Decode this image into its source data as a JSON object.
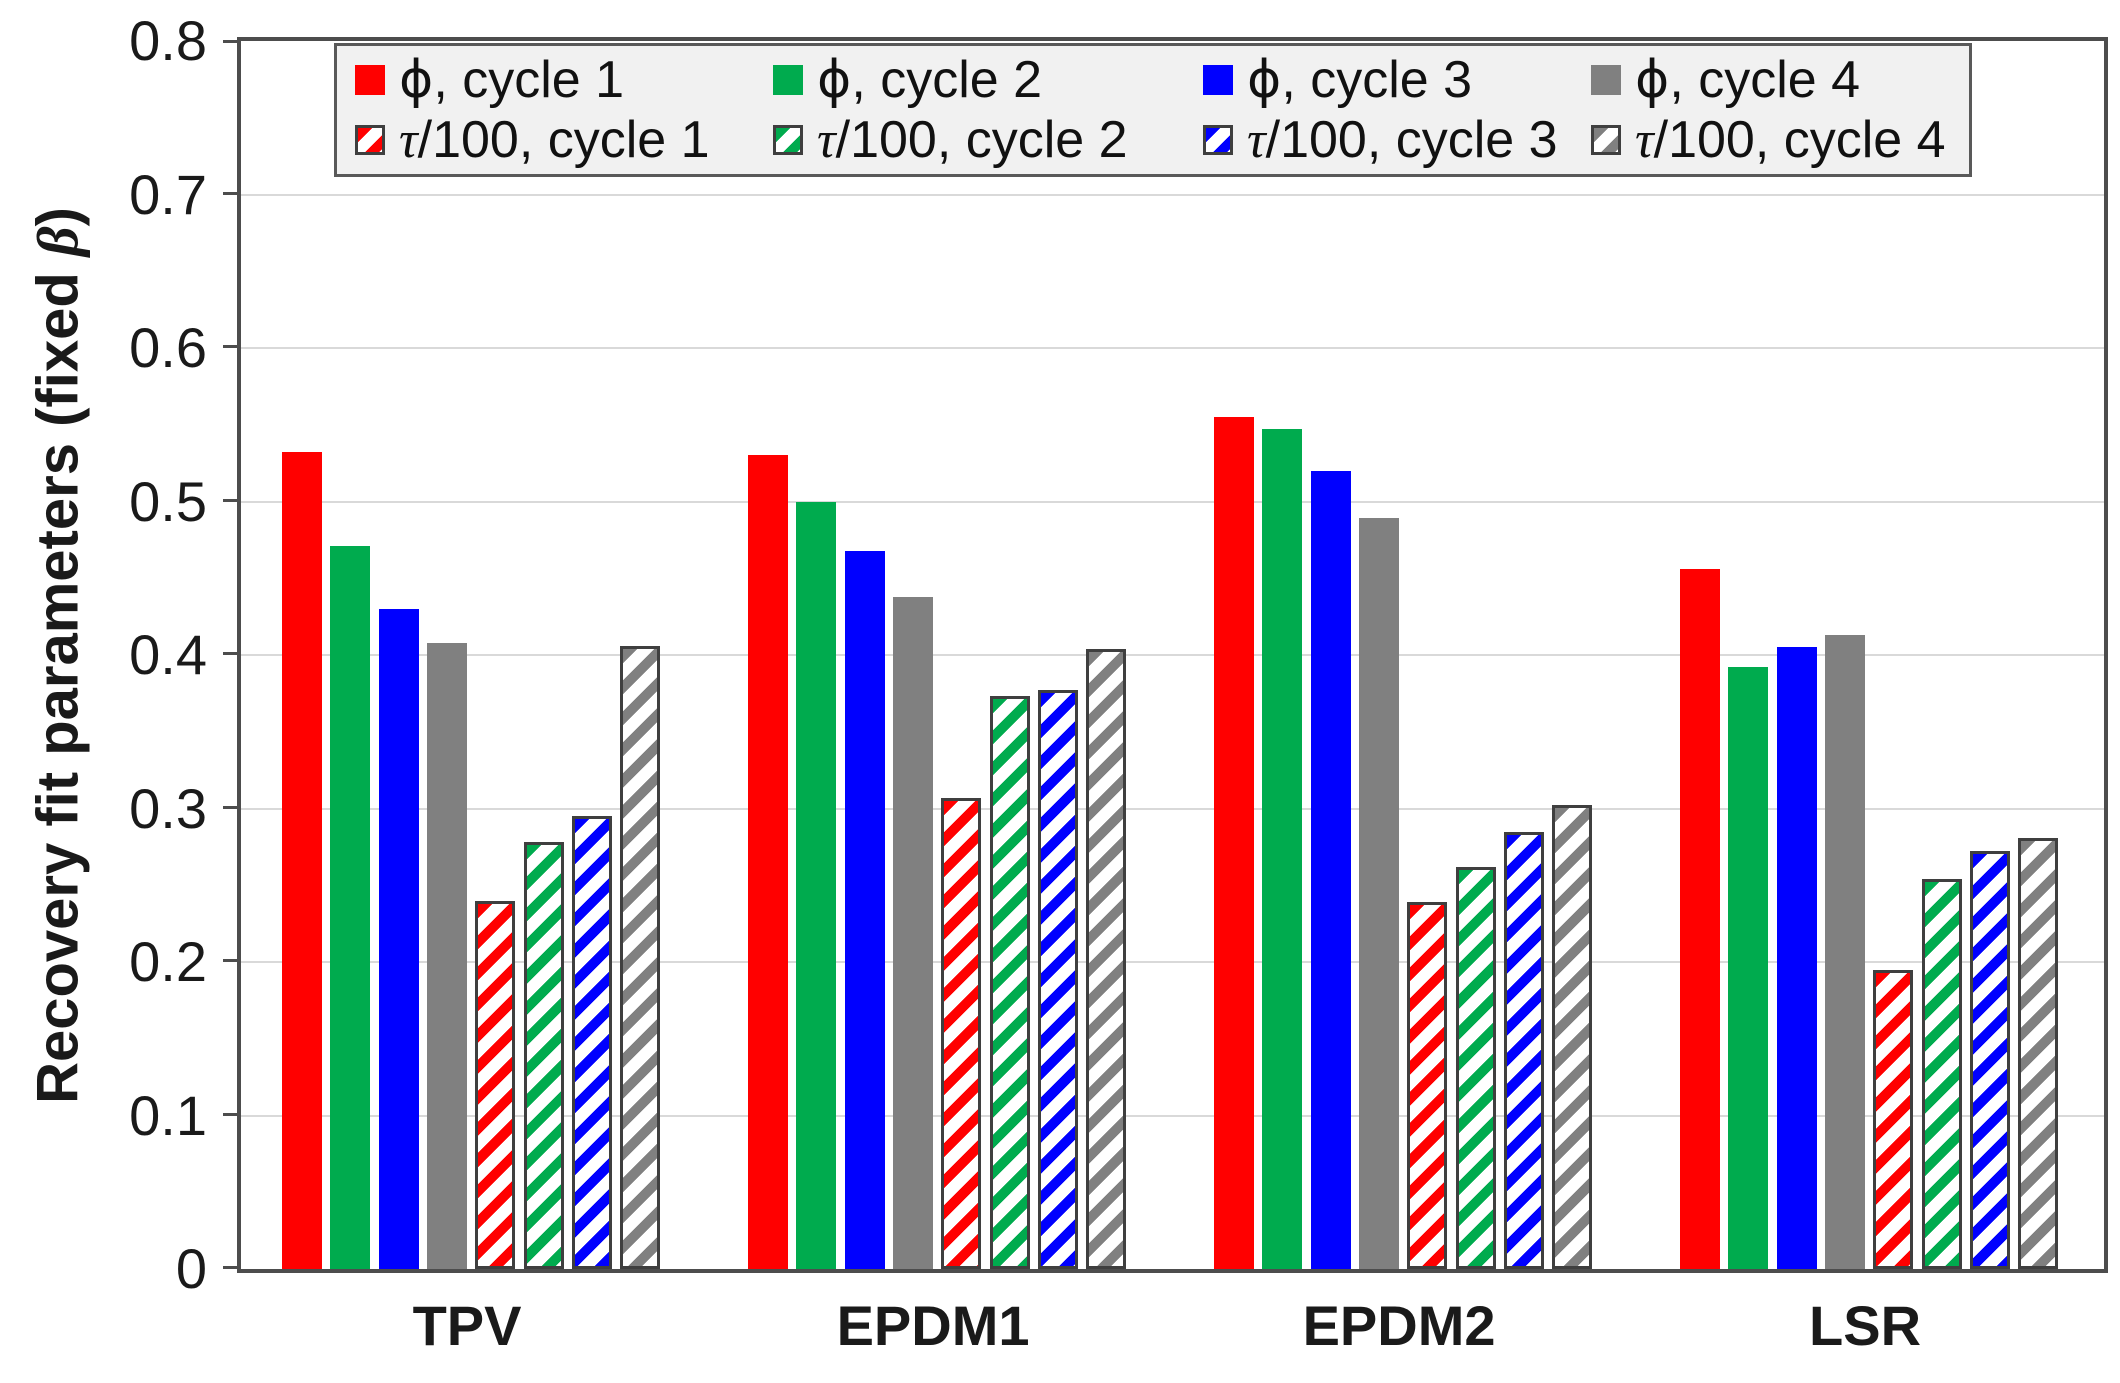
{
  "ylabel": {
    "prefix": "Recovery fit parameters (fixed ",
    "beta": "β",
    "suffix": ")"
  },
  "colors": {
    "cycle1": "#FF0000",
    "cycle2": "#00AB4E",
    "cycle3": "#0000FF",
    "cycle4": "#808080",
    "gridline": "#D9D9D9",
    "axis": "#4D4D4D",
    "bar_outline": "#3F3F3F",
    "legend_bg": "#F1F1F1"
  },
  "chart_data": {
    "type": "bar",
    "title": "",
    "ylabel": "Recovery fit parameters (fixed β)",
    "xlabel": "",
    "categories": [
      "TPV",
      "EPDM1",
      "EPDM2",
      "LSR"
    ],
    "series": [
      {
        "name": "ϕ, cycle 1",
        "symbol": "ϕ",
        "label_rest": ", cycle 1",
        "style": "solid",
        "color_key": "cycle1",
        "values": [
          0.532,
          0.53,
          0.555,
          0.456
        ]
      },
      {
        "name": "ϕ, cycle 2",
        "symbol": "ϕ",
        "label_rest": ", cycle 2",
        "style": "solid",
        "color_key": "cycle2",
        "values": [
          0.471,
          0.5,
          0.547,
          0.392
        ]
      },
      {
        "name": "ϕ, cycle 3",
        "symbol": "ϕ",
        "label_rest": ", cycle 3",
        "style": "solid",
        "color_key": "cycle3",
        "values": [
          0.43,
          0.468,
          0.52,
          0.405
        ]
      },
      {
        "name": "ϕ, cycle 4",
        "symbol": "ϕ",
        "label_rest": ", cycle 4",
        "style": "solid",
        "color_key": "cycle4",
        "values": [
          0.408,
          0.438,
          0.489,
          0.413
        ]
      },
      {
        "name": "τ/100, cycle 1",
        "symbol": "τ",
        "label_rest": "/100, cycle 1",
        "style": "hatched",
        "color_key": "cycle1",
        "values": [
          0.24,
          0.307,
          0.239,
          0.195
        ]
      },
      {
        "name": "τ/100, cycle 2",
        "symbol": "τ",
        "label_rest": "/100, cycle 2",
        "style": "hatched",
        "color_key": "cycle2",
        "values": [
          0.278,
          0.373,
          0.262,
          0.254
        ]
      },
      {
        "name": "τ/100, cycle 3",
        "symbol": "τ",
        "label_rest": "/100, cycle 3",
        "style": "hatched",
        "color_key": "cycle3",
        "values": [
          0.295,
          0.377,
          0.285,
          0.272
        ]
      },
      {
        "name": "τ/100, cycle 4",
        "symbol": "τ",
        "label_rest": "/100, cycle 4",
        "style": "hatched",
        "color_key": "cycle4",
        "values": [
          0.406,
          0.404,
          0.302,
          0.281
        ]
      }
    ],
    "ylim": [
      0,
      0.8
    ],
    "yticks": [
      "0",
      "0.1",
      "0.2",
      "0.3",
      "0.4",
      "0.5",
      "0.6",
      "0.7",
      "0.8"
    ],
    "grid": true,
    "legend_position": "top-inside"
  }
}
